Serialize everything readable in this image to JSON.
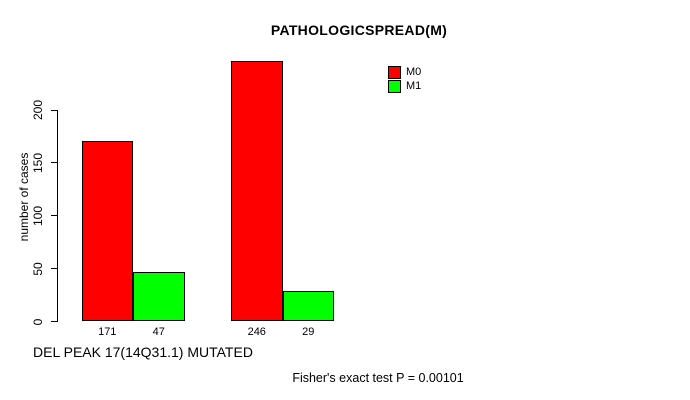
{
  "chart_data": {
    "type": "bar",
    "title": "PATHOLOGICSPREAD(M)",
    "ylabel": "number of cases",
    "xlabel": "DEL PEAK 17(14Q31.1) MUTATED",
    "annotation": "Fisher's exact test P = 0.00101",
    "yticks": [
      0,
      50,
      100,
      150,
      200
    ],
    "ylim": [
      0,
      250
    ],
    "grid": false,
    "legend_position": "top-right",
    "n_groups": 2,
    "series": [
      {
        "name": "M0",
        "color": "#FF0000",
        "values": [
          171,
          246
        ]
      },
      {
        "name": "M1",
        "color": "#00FF00",
        "values": [
          47,
          29
        ]
      }
    ],
    "bar_value_labels": [
      "171",
      "47",
      "246",
      "29"
    ],
    "colors": {
      "axis": "#000000",
      "text": "#000000",
      "background": "#FFFFFF",
      "m0": "#FF0000",
      "m1": "#00FF00"
    }
  }
}
